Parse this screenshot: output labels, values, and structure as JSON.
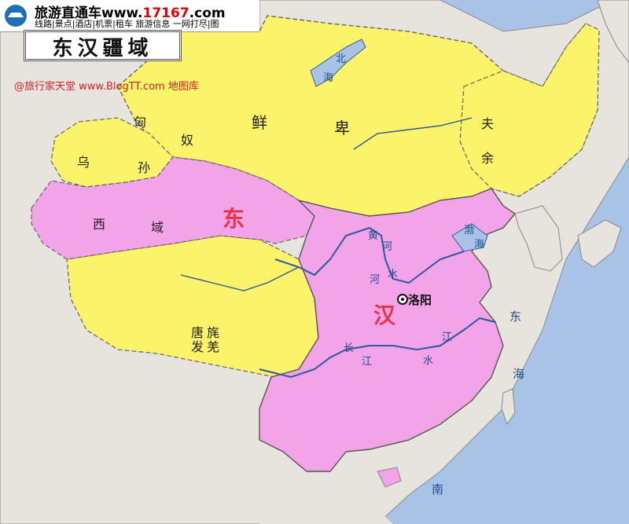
{
  "banner": {
    "line1_text": "旅游直通车www.",
    "line1_num": "17167",
    "line1_tail": ".com",
    "line2": "线路|景点|酒店|机票|租车 旅游信息 一网打尽|图"
  },
  "map_title": "东汉疆域",
  "watermark": "@旅行家天堂 www.BlogTT.com 地图库",
  "regions": {
    "xianbei_1": "鲜",
    "xianbei_2": "卑",
    "xiongnu_1": "匈",
    "xiongnu_2": "奴",
    "wusun_1": "乌",
    "wusun_2": "孙",
    "xiyu_1": "西",
    "xiyu_2": "域",
    "fuyu_1": "夫",
    "fuyu_2": "余",
    "qiang_1": "唐",
    "qiang_2": "旄",
    "qiang_3": "发",
    "qiang_4": "羌",
    "han_1": "东",
    "han_2": "汉"
  },
  "waters": {
    "beihai_1": "北",
    "beihai_2": "海",
    "huanghe_1": "黄",
    "huanghe_2": "河",
    "hewater_1": "河",
    "hewater_2": "水",
    "bohai_1": "渤",
    "bohai_2": "海",
    "changjiang_1": "长",
    "changjiang_2": "江",
    "jiangshui_1": "江",
    "jiangshui_2": "水",
    "donghai_1": "东",
    "donghai_2": "海",
    "nanhai": "南"
  },
  "city": "洛阳",
  "colors": {
    "sea": "#a9c3e6",
    "han": "#f3a3e8",
    "steppe": "#fbf36a",
    "land": "#e6e4dc",
    "river": "#2a5a9a"
  }
}
